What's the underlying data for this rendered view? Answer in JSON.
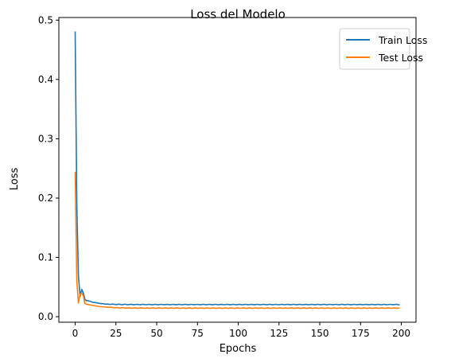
{
  "chart_data": {
    "type": "line",
    "title": "Loss del Modelo",
    "xlabel": "Epochs",
    "ylabel": "Loss",
    "xlim": [
      -10,
      209
    ],
    "ylim": [
      -0.0093,
      0.5044
    ],
    "xticks": [
      0,
      25,
      50,
      75,
      100,
      125,
      150,
      175,
      200
    ],
    "yticks": [
      0.0,
      0.1,
      0.2,
      0.3,
      0.4,
      0.5
    ],
    "ytick_labels": [
      "0.0",
      "0.1",
      "0.2",
      "0.3",
      "0.4",
      "0.5"
    ],
    "grid": false,
    "legend_position": "top-right",
    "series": [
      {
        "name": "Train Loss",
        "color": "#1f77b4",
        "x_start": 0,
        "x_end": 199,
        "head": [
          0.481,
          0.19,
          0.07,
          0.034,
          0.046,
          0.04,
          0.029,
          0.027,
          0.027,
          0.026,
          0.025,
          0.024,
          0.024,
          0.0235,
          0.023,
          0.0225,
          0.022,
          0.022,
          0.0215,
          0.0212
        ],
        "tail_value": 0.0205
      },
      {
        "name": "Test Loss",
        "color": "#ff7f0e",
        "x_start": 0,
        "x_end": 199,
        "head": [
          0.244,
          0.06,
          0.023,
          0.038,
          0.04,
          0.035,
          0.022,
          0.021,
          0.0205,
          0.02,
          0.0195,
          0.019,
          0.0185,
          0.018,
          0.0175,
          0.0172,
          0.017,
          0.0167,
          0.0165,
          0.0162
        ],
        "tail_value": 0.0145
      }
    ]
  }
}
